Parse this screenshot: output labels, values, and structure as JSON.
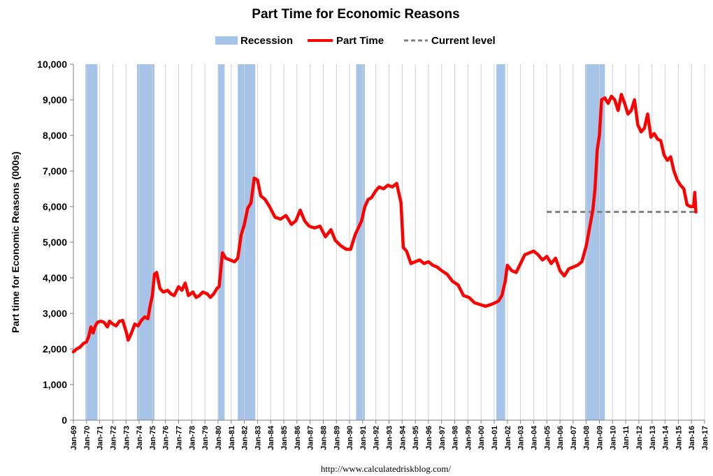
{
  "chart_data": {
    "type": "line",
    "title": "Part Time for Economic Reasons",
    "ylabel": "Part time for Economic Reasons (000s)",
    "xlabel": "",
    "source": "http://www.calculatedriskblog.com/",
    "ylim": [
      0,
      10000
    ],
    "xlim": [
      "Jan-69",
      "Jan-17"
    ],
    "yticks": [
      0,
      1000,
      2000,
      3000,
      4000,
      5000,
      6000,
      7000,
      8000,
      9000,
      10000
    ],
    "ytick_labels": [
      "0",
      "1,000",
      "2,000",
      "3,000",
      "4,000",
      "5,000",
      "6,000",
      "7,000",
      "8,000",
      "9,000",
      "10,000"
    ],
    "xtick_labels": [
      "Jan-69",
      "Jan-70",
      "Jan-71",
      "Jan-72",
      "Jan-73",
      "Jan-74",
      "Jan-75",
      "Jan-76",
      "Jan-77",
      "Jan-78",
      "Jan-79",
      "Jan-80",
      "Jan-81",
      "Jan-82",
      "Jan-83",
      "Jan-84",
      "Jan-85",
      "Jan-86",
      "Jan-87",
      "Jan-88",
      "Jan-89",
      "Jan-90",
      "Jan-91",
      "Jan-92",
      "Jan-93",
      "Jan-94",
      "Jan-95",
      "Jan-96",
      "Jan-97",
      "Jan-98",
      "Jan-99",
      "Jan-00",
      "Jan-01",
      "Jan-02",
      "Jan-03",
      "Jan-04",
      "Jan-05",
      "Jan-06",
      "Jan-07",
      "Jan-08",
      "Jan-09",
      "Jan-10",
      "Jan-11",
      "Jan-12",
      "Jan-13",
      "Jan-14",
      "Jan-15",
      "Jan-16",
      "Jan-17"
    ],
    "grid": "vertical",
    "legend_position": "top",
    "legend": [
      {
        "name": "Recession",
        "kind": "band",
        "color": "#a6c4e8"
      },
      {
        "name": "Part Time",
        "kind": "line",
        "color": "#ff0000"
      },
      {
        "name": "Current level",
        "kind": "dashed",
        "color": "#808080"
      }
    ],
    "recessions": [
      {
        "start": "1969-12",
        "end": "1970-11"
      },
      {
        "start": "1973-11",
        "end": "1975-03"
      },
      {
        "start": "1980-01",
        "end": "1980-07"
      },
      {
        "start": "1981-07",
        "end": "1982-11"
      },
      {
        "start": "1990-07",
        "end": "1991-03"
      },
      {
        "start": "2001-03",
        "end": "2001-11"
      },
      {
        "start": "2007-12",
        "end": "2009-06"
      }
    ],
    "current_level": {
      "value": 5850,
      "start": "2005-01",
      "end": "2016-05"
    },
    "series": [
      {
        "name": "Part Time",
        "color": "#ff0000",
        "points": [
          [
            "1969-01",
            1920
          ],
          [
            "1969-04",
            2000
          ],
          [
            "1969-07",
            2050
          ],
          [
            "1969-10",
            2150
          ],
          [
            "1970-01",
            2200
          ],
          [
            "1970-03",
            2350
          ],
          [
            "1970-05",
            2620
          ],
          [
            "1970-07",
            2450
          ],
          [
            "1970-09",
            2650
          ],
          [
            "1970-11",
            2750
          ],
          [
            "1971-02",
            2780
          ],
          [
            "1971-05",
            2750
          ],
          [
            "1971-08",
            2620
          ],
          [
            "1971-10",
            2780
          ],
          [
            "1972-01",
            2700
          ],
          [
            "1972-04",
            2650
          ],
          [
            "1972-07",
            2780
          ],
          [
            "1972-10",
            2800
          ],
          [
            "1973-01",
            2500
          ],
          [
            "1973-03",
            2250
          ],
          [
            "1973-06",
            2450
          ],
          [
            "1973-09",
            2700
          ],
          [
            "1973-12",
            2650
          ],
          [
            "1974-03",
            2800
          ],
          [
            "1974-06",
            2900
          ],
          [
            "1974-09",
            2850
          ],
          [
            "1974-11",
            3200
          ],
          [
            "1975-01",
            3500
          ],
          [
            "1975-03",
            4100
          ],
          [
            "1975-05",
            4150
          ],
          [
            "1975-08",
            3700
          ],
          [
            "1975-11",
            3600
          ],
          [
            "1976-03",
            3650
          ],
          [
            "1976-06",
            3550
          ],
          [
            "1976-09",
            3500
          ],
          [
            "1977-01",
            3750
          ],
          [
            "1977-04",
            3650
          ],
          [
            "1977-07",
            3850
          ],
          [
            "1977-10",
            3500
          ],
          [
            "1978-02",
            3600
          ],
          [
            "1978-05",
            3450
          ],
          [
            "1978-08",
            3500
          ],
          [
            "1978-11",
            3600
          ],
          [
            "1979-03",
            3550
          ],
          [
            "1979-06",
            3450
          ],
          [
            "1979-09",
            3550
          ],
          [
            "1979-12",
            3700
          ],
          [
            "1980-02",
            3750
          ],
          [
            "1980-05",
            4700
          ],
          [
            "1980-08",
            4550
          ],
          [
            "1980-12",
            4500
          ],
          [
            "1981-04",
            4450
          ],
          [
            "1981-07",
            4550
          ],
          [
            "1981-10",
            5200
          ],
          [
            "1982-01",
            5500
          ],
          [
            "1982-04",
            5950
          ],
          [
            "1982-07",
            6100
          ],
          [
            "1982-10",
            6800
          ],
          [
            "1983-01",
            6750
          ],
          [
            "1983-04",
            6300
          ],
          [
            "1983-08",
            6200
          ],
          [
            "1983-12",
            6000
          ],
          [
            "1984-05",
            5700
          ],
          [
            "1984-10",
            5650
          ],
          [
            "1985-03",
            5750
          ],
          [
            "1985-08",
            5500
          ],
          [
            "1985-12",
            5600
          ],
          [
            "1986-04",
            5900
          ],
          [
            "1986-08",
            5600
          ],
          [
            "1986-12",
            5450
          ],
          [
            "1987-05",
            5400
          ],
          [
            "1987-10",
            5450
          ],
          [
            "1988-03",
            5150
          ],
          [
            "1988-08",
            5350
          ],
          [
            "1988-12",
            5050
          ],
          [
            "1989-05",
            4900
          ],
          [
            "1989-10",
            4800
          ],
          [
            "1990-02",
            4800
          ],
          [
            "1990-06",
            5200
          ],
          [
            "1990-09",
            5400
          ],
          [
            "1990-12",
            5600
          ],
          [
            "1991-03",
            6000
          ],
          [
            "1991-06",
            6200
          ],
          [
            "1991-09",
            6250
          ],
          [
            "1992-01",
            6450
          ],
          [
            "1992-04",
            6550
          ],
          [
            "1992-08",
            6500
          ],
          [
            "1992-12",
            6600
          ],
          [
            "1993-04",
            6550
          ],
          [
            "1993-08",
            6650
          ],
          [
            "1993-12",
            6100
          ],
          [
            "1994-02",
            4850
          ],
          [
            "1994-05",
            4750
          ],
          [
            "1994-09",
            4400
          ],
          [
            "1995-01",
            4450
          ],
          [
            "1995-05",
            4500
          ],
          [
            "1995-09",
            4400
          ],
          [
            "1996-01",
            4450
          ],
          [
            "1996-05",
            4350
          ],
          [
            "1996-09",
            4300
          ],
          [
            "1997-01",
            4200
          ],
          [
            "1997-06",
            4100
          ],
          [
            "1997-11",
            3900
          ],
          [
            "1998-04",
            3800
          ],
          [
            "1998-09",
            3500
          ],
          [
            "1999-02",
            3450
          ],
          [
            "1999-07",
            3300
          ],
          [
            "1999-12",
            3250
          ],
          [
            "2000-05",
            3200
          ],
          [
            "2000-10",
            3250
          ],
          [
            "2001-02",
            3300
          ],
          [
            "2001-05",
            3350
          ],
          [
            "2001-08",
            3500
          ],
          [
            "2001-11",
            3900
          ],
          [
            "2002-01",
            4350
          ],
          [
            "2002-05",
            4200
          ],
          [
            "2002-09",
            4150
          ],
          [
            "2003-01",
            4400
          ],
          [
            "2003-05",
            4650
          ],
          [
            "2003-09",
            4700
          ],
          [
            "2004-01",
            4750
          ],
          [
            "2004-05",
            4650
          ],
          [
            "2004-09",
            4500
          ],
          [
            "2005-01",
            4600
          ],
          [
            "2005-05",
            4400
          ],
          [
            "2005-09",
            4550
          ],
          [
            "2006-01",
            4200
          ],
          [
            "2006-05",
            4050
          ],
          [
            "2006-09",
            4250
          ],
          [
            "2007-01",
            4300
          ],
          [
            "2007-05",
            4350
          ],
          [
            "2007-09",
            4450
          ],
          [
            "2008-01",
            4900
          ],
          [
            "2008-04",
            5400
          ],
          [
            "2008-07",
            5900
          ],
          [
            "2008-09",
            6500
          ],
          [
            "2008-11",
            7600
          ],
          [
            "2009-01",
            8000
          ],
          [
            "2009-03",
            9000
          ],
          [
            "2009-06",
            9050
          ],
          [
            "2009-09",
            8900
          ],
          [
            "2009-12",
            9100
          ],
          [
            "2010-03",
            9000
          ],
          [
            "2010-06",
            8700
          ],
          [
            "2010-09",
            9150
          ],
          [
            "2010-12",
            8900
          ],
          [
            "2011-03",
            8600
          ],
          [
            "2011-06",
            8700
          ],
          [
            "2011-09",
            9000
          ],
          [
            "2011-12",
            8300
          ],
          [
            "2012-03",
            8100
          ],
          [
            "2012-06",
            8200
          ],
          [
            "2012-09",
            8600
          ],
          [
            "2012-12",
            7950
          ],
          [
            "2013-03",
            8050
          ],
          [
            "2013-06",
            7900
          ],
          [
            "2013-09",
            7850
          ],
          [
            "2013-12",
            7450
          ],
          [
            "2014-03",
            7300
          ],
          [
            "2014-06",
            7400
          ],
          [
            "2014-09",
            7000
          ],
          [
            "2014-12",
            6750
          ],
          [
            "2015-03",
            6600
          ],
          [
            "2015-06",
            6500
          ],
          [
            "2015-09",
            6050
          ],
          [
            "2015-12",
            6000
          ],
          [
            "2016-03",
            6000
          ],
          [
            "2016-04",
            6400
          ],
          [
            "2016-05",
            5850
          ]
        ]
      }
    ]
  }
}
